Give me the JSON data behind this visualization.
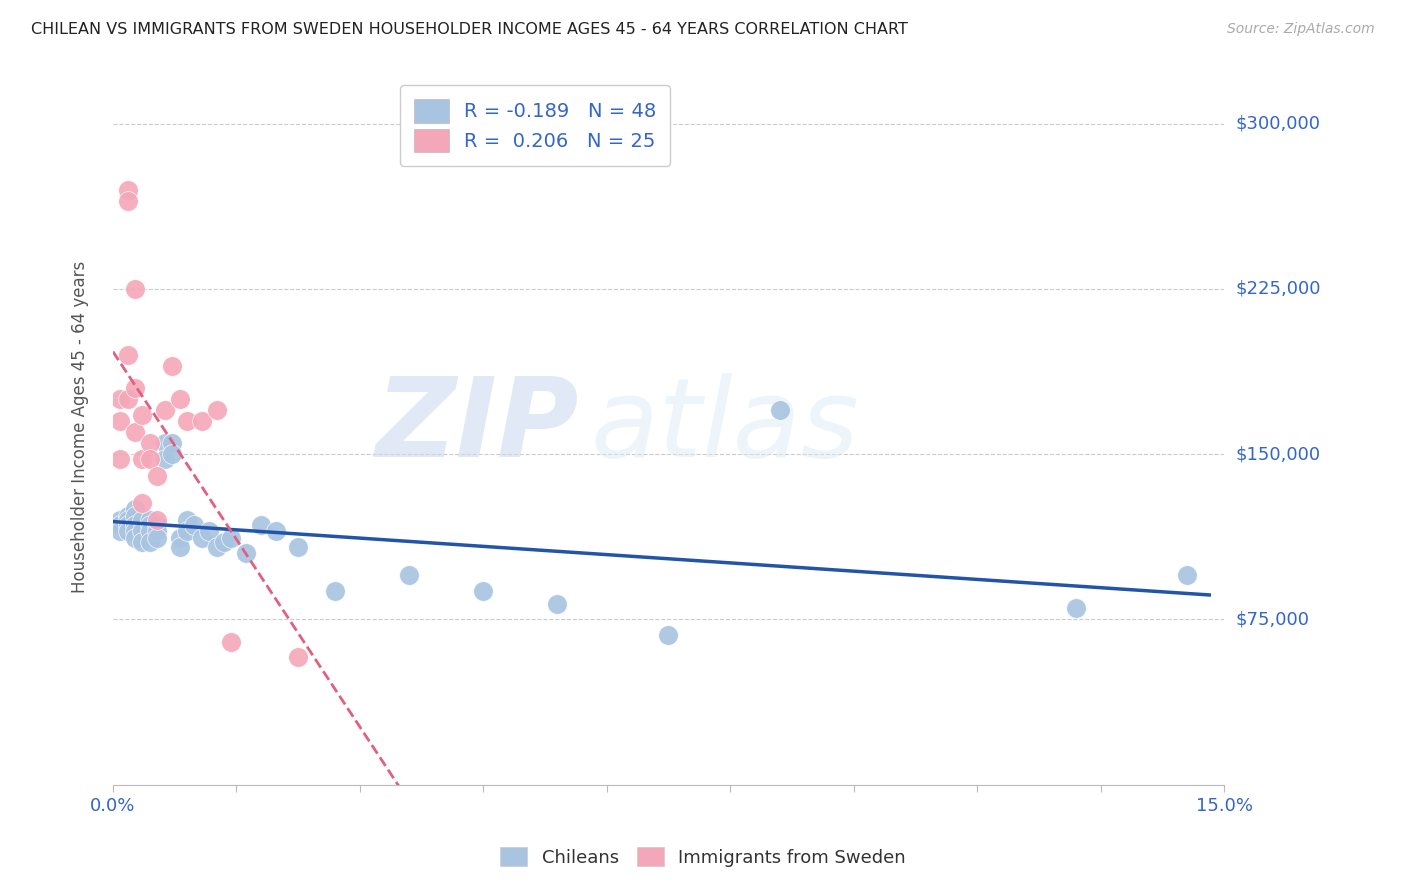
{
  "title": "CHILEAN VS IMMIGRANTS FROM SWEDEN HOUSEHOLDER INCOME AGES 45 - 64 YEARS CORRELATION CHART",
  "source": "Source: ZipAtlas.com",
  "ylabel": "Householder Income Ages 45 - 64 years",
  "xlim": [
    0.0,
    0.15
  ],
  "ylim": [
    0,
    325000
  ],
  "yticks": [
    0,
    75000,
    150000,
    225000,
    300000
  ],
  "ytick_labels": [
    "",
    "$75,000",
    "$150,000",
    "$225,000",
    "$300,000"
  ],
  "blue_R": -0.189,
  "blue_N": 48,
  "pink_R": 0.206,
  "pink_N": 25,
  "blue_color": "#a8c4e0",
  "pink_color": "#f4a7b8",
  "blue_line_color": "#2255aa",
  "pink_line_color": "#e06080",
  "watermark_zip": "ZIP",
  "watermark_atlas": "atlas",
  "legend_blue_label": "R = -0.189   N = 48",
  "legend_pink_label": "R =  0.206   N = 25",
  "blue_scatter_x": [
    0.001,
    0.001,
    0.001,
    0.002,
    0.002,
    0.002,
    0.002,
    0.003,
    0.003,
    0.003,
    0.003,
    0.003,
    0.004,
    0.004,
    0.004,
    0.005,
    0.005,
    0.005,
    0.005,
    0.006,
    0.006,
    0.006,
    0.007,
    0.007,
    0.008,
    0.008,
    0.009,
    0.009,
    0.01,
    0.01,
    0.011,
    0.012,
    0.013,
    0.014,
    0.015,
    0.016,
    0.018,
    0.02,
    0.022,
    0.025,
    0.03,
    0.04,
    0.05,
    0.06,
    0.075,
    0.09,
    0.13,
    0.145
  ],
  "blue_scatter_y": [
    120000,
    118000,
    115000,
    122000,
    120000,
    118000,
    115000,
    125000,
    122000,
    118000,
    115000,
    112000,
    120000,
    115000,
    110000,
    120000,
    118000,
    115000,
    110000,
    118000,
    115000,
    112000,
    155000,
    148000,
    155000,
    150000,
    112000,
    108000,
    120000,
    115000,
    118000,
    112000,
    115000,
    108000,
    110000,
    112000,
    105000,
    118000,
    115000,
    108000,
    88000,
    95000,
    88000,
    82000,
    68000,
    170000,
    80000,
    95000
  ],
  "pink_scatter_x": [
    0.001,
    0.001,
    0.001,
    0.002,
    0.002,
    0.002,
    0.002,
    0.003,
    0.003,
    0.003,
    0.004,
    0.004,
    0.004,
    0.005,
    0.005,
    0.006,
    0.006,
    0.007,
    0.008,
    0.009,
    0.01,
    0.012,
    0.014,
    0.016,
    0.025
  ],
  "pink_scatter_y": [
    148000,
    165000,
    175000,
    270000,
    265000,
    195000,
    175000,
    225000,
    180000,
    160000,
    148000,
    168000,
    128000,
    155000,
    148000,
    120000,
    140000,
    170000,
    190000,
    175000,
    165000,
    165000,
    170000,
    65000,
    58000
  ]
}
